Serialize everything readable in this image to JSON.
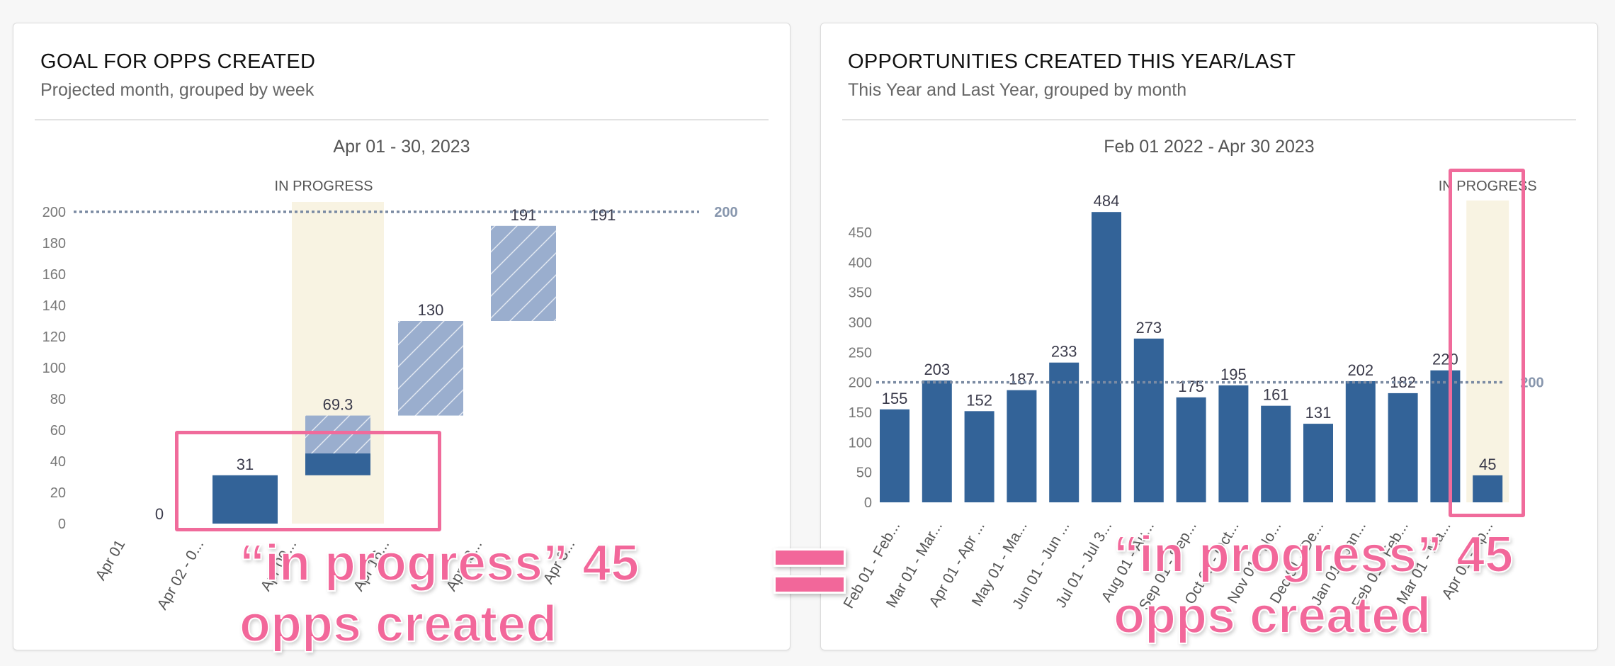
{
  "left_card": {
    "title": "GOAL FOR OPPS CREATED",
    "subtitle": "Projected month, grouped by week",
    "range_label": "Apr 01 - 30, 2023"
  },
  "right_card": {
    "title": "OPPORTUNITIES CREATED THIS YEAR/LAST",
    "subtitle": "This Year and Last Year, grouped by month",
    "range_label": "Feb 01 2022 - Apr 30 2023"
  },
  "overlay": {
    "left_line1": "“in progress” 45",
    "left_line2": "opps created",
    "right_line1": "“in progress” 45",
    "right_line2": "opps created",
    "equals": "="
  },
  "colors": {
    "bar": "#336398",
    "projected": "#9aaece",
    "in_progress_band": "#f8f3e2",
    "goal_line": "#7b8ba3",
    "highlight": "#f06b9b"
  },
  "chart_data": [
    {
      "type": "bar",
      "chart_style": "waterfall",
      "categories": [
        "Apr 01",
        "Apr 02 - 0...",
        "Apr 09...",
        "Apr 16...",
        "Apr 23...",
        "Apr 3..."
      ],
      "series": [
        {
          "values": [
            0,
            31,
            14,
            0,
            0,
            0
          ]
        },
        {
          "values": [
            0,
            0,
            24.3,
            60.7,
            61,
            0
          ]
        }
      ],
      "segment_ranges": [
        {
          "category_index": 1,
          "from": 0,
          "to": 31,
          "style": "actual"
        },
        {
          "category_index": 2,
          "from": 31,
          "to": 45,
          "style": "actual"
        },
        {
          "category_index": 2,
          "from": 45,
          "to": 69.3,
          "style": "projected"
        },
        {
          "category_index": 3,
          "from": 69.3,
          "to": 130,
          "style": "projected"
        },
        {
          "category_index": 4,
          "from": 130,
          "to": 191,
          "style": "projected"
        }
      ],
      "data_labels": [
        "0",
        "31",
        "69.3",
        "130",
        "191",
        "191"
      ],
      "in_progress_index": 2,
      "in_progress_label": "IN PROGRESS",
      "goal": 200,
      "goal_label": "200",
      "ylim": [
        0,
        200
      ],
      "yticks": [
        "0",
        "20",
        "40",
        "60",
        "80",
        "100",
        "120",
        "140",
        "160",
        "180",
        "200"
      ],
      "grid": false
    },
    {
      "type": "bar",
      "categories": [
        "Feb 01 - Feb...",
        "Mar 01 - Mar...",
        "Apr 01 - Apr ...",
        "May 01 - Ma...",
        "Jun 01 - Jun ...",
        "Jul 01 - Jul 3...",
        "Aug 01 - Au...",
        "Sep 01 - Sep...",
        "Oct 01 - Oct...",
        "Nov 01 - No...",
        "Dec 01 - De...",
        "Jan 01 - Jan...",
        "Feb 01 - Feb...",
        "Mar 01 - Ma...",
        "Apr 01 - Ap..."
      ],
      "values": [
        155,
        203,
        152,
        187,
        233,
        484,
        273,
        175,
        195,
        161,
        131,
        202,
        182,
        220,
        45
      ],
      "in_progress_index": 14,
      "in_progress_label": "IN PROGRESS",
      "goal": 200,
      "goal_label": "200",
      "ylim": [
        0,
        500
      ],
      "yticks": [
        "0",
        "50",
        "100",
        "150",
        "200",
        "250",
        "300",
        "350",
        "400",
        "450"
      ],
      "grid": false
    }
  ]
}
